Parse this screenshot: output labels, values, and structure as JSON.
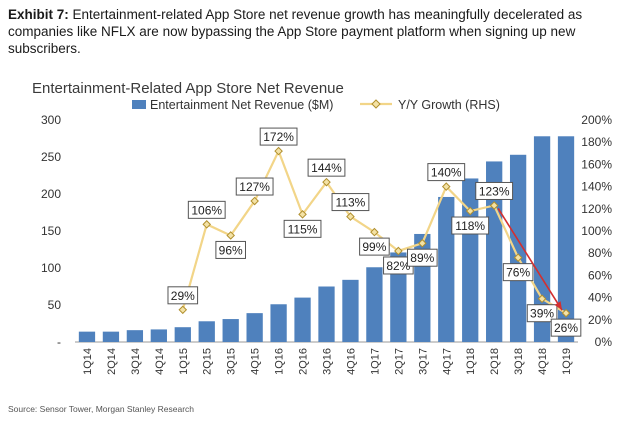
{
  "exhibit": {
    "label": "Exhibit 7:",
    "caption": "Entertainment-related App Store net revenue growth has meaningfully decelerated as companies like NFLX are now bypassing the App Store payment platform when signing up new subscribers."
  },
  "source": "Source: Sensor Tower, Morgan Stanley Research",
  "colors": {
    "bars": "#4f81bd",
    "line": "#f2d588",
    "marker_fill": "#f4e2a5",
    "marker_stroke": "#b08f2e",
    "arrow": "#d32f2f"
  },
  "chart_data": {
    "type": "bar",
    "title": "Entertainment-Related App Store Net Revenue",
    "categories": [
      "1Q14",
      "2Q14",
      "3Q14",
      "4Q14",
      "1Q15",
      "2Q15",
      "3Q15",
      "4Q15",
      "1Q16",
      "2Q16",
      "3Q16",
      "4Q16",
      "1Q17",
      "2Q17",
      "3Q17",
      "4Q17",
      "1Q18",
      "2Q18",
      "3Q18",
      "4Q18",
      "1Q19"
    ],
    "series": [
      {
        "name": "Entertainment Net Revenue ($M)",
        "type": "bar",
        "axis": "left",
        "values": [
          14,
          14,
          16,
          17,
          20,
          28,
          31,
          39,
          51,
          60,
          75,
          84,
          101,
          121,
          146,
          196,
          221,
          244,
          253,
          278,
          278
        ]
      },
      {
        "name": "Y/Y Growth (RHS)",
        "type": "line",
        "axis": "right",
        "values": [
          null,
          null,
          null,
          null,
          29,
          106,
          96,
          127,
          172,
          115,
          144,
          113,
          99,
          82,
          89,
          140,
          118,
          123,
          76,
          39,
          26
        ],
        "labels": [
          null,
          null,
          null,
          null,
          "29%",
          "106%",
          "96%",
          "127%",
          "172%",
          "115%",
          "144%",
          "113%",
          "99%",
          "82%",
          "89%",
          "140%",
          "118%",
          "123%",
          "76%",
          "39%",
          "26%"
        ]
      }
    ],
    "ylim_left": [
      0,
      300
    ],
    "left_ticks": [
      "-",
      "50",
      "100",
      "150",
      "200",
      "250",
      "300"
    ],
    "ylim_right": [
      0,
      200
    ],
    "right_ticks": [
      "0%",
      "20%",
      "40%",
      "60%",
      "80%",
      "100%",
      "120%",
      "140%",
      "160%",
      "180%",
      "200%"
    ],
    "legend_position": "top",
    "grid": false,
    "annotation": "red arrow from 2Q18 to 1Q19 on growth line"
  }
}
